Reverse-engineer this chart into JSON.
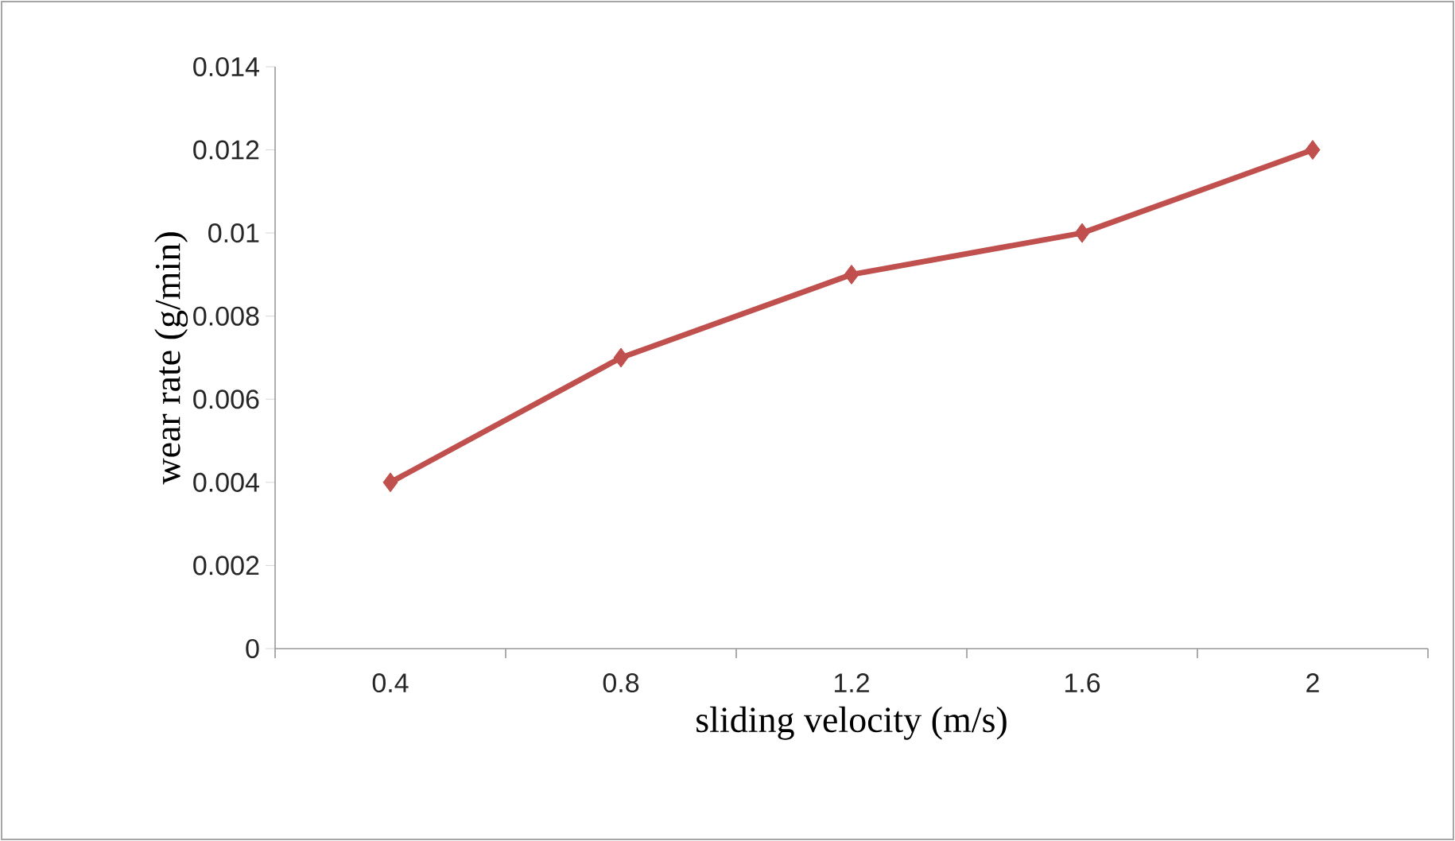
{
  "chart_data": {
    "type": "line",
    "xlabel": "sliding velocity (m/s)",
    "ylabel": "wear rate (g/min)",
    "categories": [
      "0.4",
      "0.8",
      "1.2",
      "1.6",
      "2"
    ],
    "values": [
      0.004,
      0.007,
      0.009,
      0.01,
      0.012
    ],
    "color": "#c0504d",
    "marker": "diamond",
    "line_style": "solid",
    "ylim": [
      0,
      0.014
    ],
    "yticks": [
      0,
      0.002,
      0.004,
      0.006,
      0.008,
      0.01,
      0.012,
      0.014
    ]
  }
}
